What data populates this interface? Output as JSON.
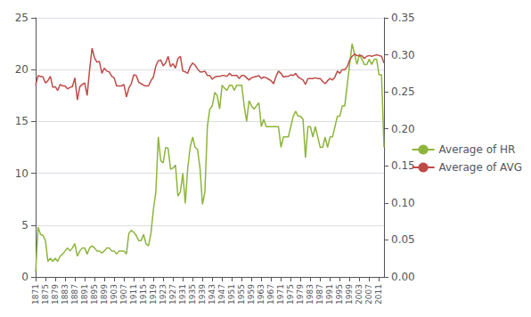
{
  "chart_data": {
    "type": "line",
    "x": [
      1871,
      1872,
      1873,
      1874,
      1875,
      1876,
      1877,
      1878,
      1879,
      1880,
      1881,
      1882,
      1883,
      1884,
      1885,
      1886,
      1887,
      1888,
      1889,
      1890,
      1891,
      1892,
      1893,
      1894,
      1895,
      1896,
      1897,
      1898,
      1899,
      1900,
      1901,
      1902,
      1903,
      1904,
      1905,
      1906,
      1907,
      1908,
      1909,
      1910,
      1911,
      1912,
      1913,
      1914,
      1915,
      1916,
      1917,
      1918,
      1919,
      1920,
      1921,
      1922,
      1923,
      1924,
      1925,
      1926,
      1927,
      1928,
      1929,
      1930,
      1931,
      1932,
      1933,
      1934,
      1935,
      1936,
      1937,
      1938,
      1939,
      1940,
      1941,
      1942,
      1943,
      1944,
      1945,
      1946,
      1947,
      1948,
      1949,
      1950,
      1951,
      1952,
      1953,
      1954,
      1955,
      1956,
      1957,
      1958,
      1959,
      1960,
      1961,
      1962,
      1963,
      1964,
      1965,
      1966,
      1967,
      1968,
      1969,
      1970,
      1971,
      1972,
      1973,
      1974,
      1975,
      1976,
      1977,
      1978,
      1979,
      1980,
      1981,
      1982,
      1983,
      1984,
      1985,
      1986,
      1987,
      1988,
      1989,
      1990,
      1991,
      1992,
      1993,
      1994,
      1995,
      1996,
      1997,
      1998,
      1999,
      2000,
      2001,
      2002,
      2003,
      2004,
      2005,
      2006,
      2007,
      2008,
      2009,
      2010,
      2011,
      2012,
      2013
    ],
    "series": [
      {
        "name": "Average of HR",
        "color": "#8DB53C",
        "values": [
          0.5,
          4.8,
          4.1,
          4.0,
          3.5,
          1.5,
          1.8,
          1.5,
          1.8,
          1.5,
          2.0,
          2.2,
          2.5,
          2.8,
          2.5,
          2.8,
          3.2,
          2.0,
          2.5,
          2.8,
          2.8,
          2.2,
          2.8,
          3.0,
          2.8,
          2.5,
          2.5,
          2.3,
          2.5,
          2.8,
          2.8,
          2.5,
          2.5,
          2.2,
          2.5,
          2.5,
          2.5,
          2.2,
          4.2,
          4.5,
          4.3,
          4.0,
          3.5,
          3.5,
          4.1,
          3.2,
          3.0,
          4.2,
          6.5,
          8.2,
          13.5,
          11.2,
          11.0,
          12.5,
          12.4,
          10.4,
          10.5,
          10.8,
          7.8,
          8.2,
          10.0,
          7.1,
          10.5,
          12.5,
          13.5,
          12.5,
          12.3,
          10.5,
          7.0,
          8.2,
          14.5,
          16.2,
          16.5,
          17.8,
          17.5,
          16.2,
          18.5,
          18.2,
          18.0,
          18.5,
          18.5,
          18.0,
          18.5,
          18.5,
          18.5,
          16.5,
          15.0,
          17.0,
          16.5,
          16.2,
          16.5,
          16.8,
          14.5,
          15.2,
          14.5,
          14.5,
          14.5,
          14.5,
          14.5,
          14.5,
          12.5,
          13.5,
          13.5,
          13.5,
          14.5,
          15.5,
          16.0,
          15.5,
          15.5,
          15.2,
          11.5,
          14.5,
          14.5,
          13.5,
          14.5,
          13.5,
          12.5,
          12.5,
          13.5,
          12.5,
          13.5,
          13.5,
          14.5,
          15.5,
          15.5,
          16.5,
          16.5,
          18.5,
          20.5,
          22.5,
          21.5,
          20.5,
          21.5,
          21.0,
          20.5,
          20.5,
          21.0,
          20.5,
          21.0,
          21.0,
          19.5,
          19.5,
          12.5
        ]
      },
      {
        "name": "Average of AVG",
        "color": "#BE4B48",
        "axis": "y2",
        "values": [
          0.259,
          0.272,
          0.271,
          0.27,
          0.262,
          0.265,
          0.271,
          0.256,
          0.257,
          0.252,
          0.26,
          0.258,
          0.258,
          0.254,
          0.256,
          0.257,
          0.269,
          0.239,
          0.257,
          0.26,
          0.262,
          0.245,
          0.28,
          0.309,
          0.296,
          0.29,
          0.291,
          0.275,
          0.282,
          0.278,
          0.277,
          0.271,
          0.269,
          0.258,
          0.258,
          0.258,
          0.26,
          0.243,
          0.255,
          0.261,
          0.273,
          0.272,
          0.263,
          0.261,
          0.259,
          0.258,
          0.258,
          0.265,
          0.27,
          0.285,
          0.292,
          0.293,
          0.285,
          0.289,
          0.298,
          0.284,
          0.288,
          0.282,
          0.295,
          0.298,
          0.278,
          0.277,
          0.275,
          0.284,
          0.289,
          0.286,
          0.281,
          0.277,
          0.277,
          0.278,
          0.272,
          0.272,
          0.267,
          0.27,
          0.271,
          0.271,
          0.272,
          0.272,
          0.271,
          0.275,
          0.272,
          0.272,
          0.272,
          0.268,
          0.272,
          0.272,
          0.269,
          0.266,
          0.269,
          0.27,
          0.271,
          0.272,
          0.268,
          0.27,
          0.269,
          0.267,
          0.265,
          0.261,
          0.271,
          0.278,
          0.275,
          0.27,
          0.271,
          0.271,
          0.273,
          0.272,
          0.275,
          0.27,
          0.268,
          0.266,
          0.26,
          0.268,
          0.268,
          0.268,
          0.269,
          0.268,
          0.268,
          0.264,
          0.261,
          0.265,
          0.268,
          0.266,
          0.27,
          0.278,
          0.275,
          0.28,
          0.28,
          0.284,
          0.293,
          0.298,
          0.301,
          0.299,
          0.299,
          0.299,
          0.295,
          0.298,
          0.299,
          0.298,
          0.299,
          0.3,
          0.299,
          0.298,
          0.289
        ]
      }
    ],
    "xlim": [
      1871,
      2013
    ],
    "xticks": [
      1871,
      1875,
      1879,
      1883,
      1887,
      1891,
      1895,
      1899,
      1903,
      1907,
      1911,
      1915,
      1919,
      1923,
      1927,
      1931,
      1935,
      1939,
      1943,
      1947,
      1951,
      1955,
      1959,
      1963,
      1967,
      1971,
      1975,
      1979,
      1983,
      1987,
      1991,
      1995,
      1999,
      2003,
      2007,
      2011
    ],
    "ylim": [
      0,
      25
    ],
    "yticks": [
      0,
      5,
      10,
      15,
      20,
      25
    ],
    "y2lim": [
      0,
      0.35
    ],
    "y2ticks": [
      {
        "value": 0,
        "label": "0.00"
      },
      0.05,
      {
        "value": 0.1,
        "label": "0.10"
      },
      0.15,
      {
        "value": 0.2,
        "label": "0.20"
      },
      0.25,
      {
        "value": 0.3,
        "label": "0.30"
      },
      0.35
    ],
    "grid": true,
    "legend": "right"
  }
}
